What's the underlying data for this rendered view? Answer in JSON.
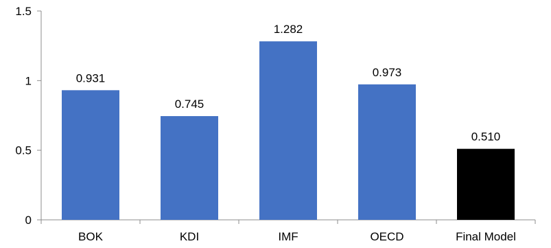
{
  "chart_data": {
    "type": "bar",
    "title": "",
    "xlabel": "",
    "ylabel": "",
    "categories": [
      "BOK",
      "KDI",
      "IMF",
      "OECD",
      "Final Model"
    ],
    "values": [
      0.931,
      0.745,
      1.282,
      0.973,
      0.51
    ],
    "data_labels": [
      "0.931",
      "0.745",
      "1.282",
      "0.973",
      "0.510"
    ],
    "bar_colors": [
      "#4472C4",
      "#4472C4",
      "#4472C4",
      "#4472C4",
      "#000000"
    ],
    "ylim": [
      0,
      1.5
    ],
    "yticks": [
      0,
      0.5,
      1,
      1.5
    ],
    "ytick_labels": [
      "0",
      "0.5",
      "1",
      "1.5"
    ],
    "grid": false,
    "legend": "none"
  }
}
